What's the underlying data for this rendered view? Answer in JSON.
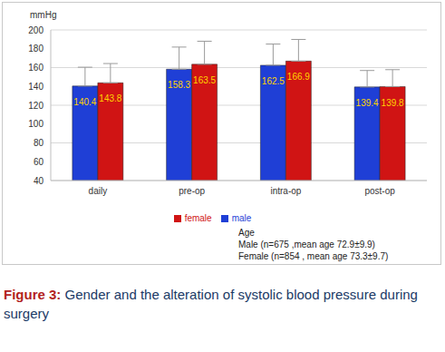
{
  "chart_data": {
    "type": "bar",
    "title": "Figure 3: Gender and the alteration of systolic blood pressure during surgery",
    "y_label": "mmHg",
    "categories": [
      "daily",
      "pre-op",
      "intra-op",
      "post-op"
    ],
    "series": [
      {
        "name": "male",
        "color": "#1f3fd6",
        "values": [
          140.4,
          158.3,
          162.5,
          139.4
        ],
        "errors": [
          20,
          23.5,
          22.5,
          17.5
        ]
      },
      {
        "name": "female",
        "color": "#d01414",
        "values": [
          143.8,
          163.5,
          166.9,
          139.8
        ],
        "errors": [
          20.5,
          24.5,
          23,
          18
        ]
      }
    ],
    "ylim": [
      40,
      200
    ],
    "yticks": [
      40,
      60,
      80,
      100,
      120,
      140,
      160,
      180,
      200
    ],
    "grid": true,
    "legend": "bottom",
    "data_labels": true,
    "annotations": [
      "Age",
      "Male (n=675 ,mean age 72.9±9.9)",
      "Female (n=854 , mean age 73.3±9.7)"
    ]
  }
}
